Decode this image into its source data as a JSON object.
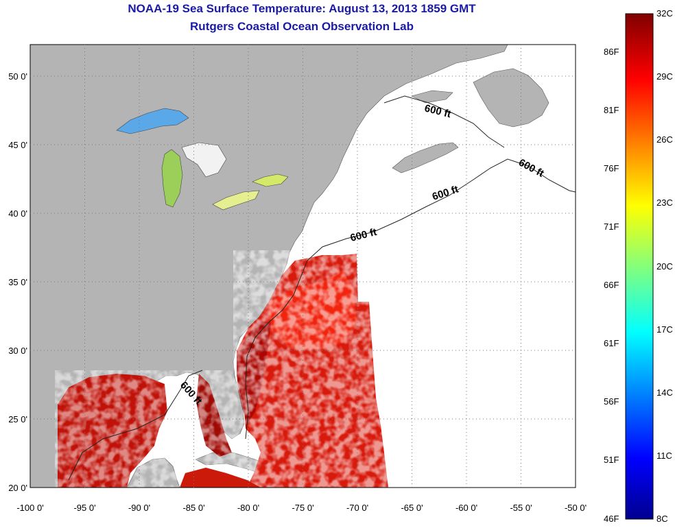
{
  "title": "NOAA-19 Sea Surface Temperature:  August 13, 2013 1859 GMT",
  "subtitle": "Rutgers Coastal Ocean Observation Lab",
  "map": {
    "lon_range": [
      -100,
      -50
    ],
    "lat_range": [
      20,
      52.3
    ],
    "x_ticks": [
      "-100 0'",
      "-95 0'",
      "-90 0'",
      "-85 0'",
      "-80 0'",
      "-75 0'",
      "-70 0'",
      "-65 0'",
      "-60 0'",
      "-55 0'",
      "-50 0'"
    ],
    "y_ticks": [
      "20 0'",
      "25 0'",
      "30 0'",
      "35 0'",
      "40 0'",
      "45 0'",
      "50 0'"
    ],
    "depth_labels": [
      "600 ft",
      "600 ft",
      "600 ft",
      "600 ft",
      "600 ft"
    ],
    "land_color": "#b4b4b4",
    "ocean_color": "#ffffff"
  },
  "colorbar": {
    "celsius": [
      "32C",
      "29C",
      "26C",
      "23C",
      "20C",
      "17C",
      "14C",
      "11C",
      "8C"
    ],
    "fahrenheit": [
      "86F",
      "81F",
      "76F",
      "71F",
      "66F",
      "61F",
      "56F",
      "51F",
      "46F"
    ],
    "range_c": [
      8,
      32
    ],
    "palette": "jet"
  }
}
